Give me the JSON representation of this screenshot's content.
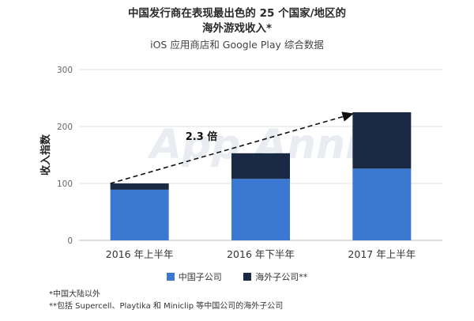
{
  "chart_data": {
    "type": "bar",
    "stacked": true,
    "title": "中国发行商在表现最出色的 25 个国家/地区的海外游戏收入*",
    "subtitle": "iOS 应用商店和 Google Play 综合数据",
    "ylabel": "收入指数",
    "xlabel": "",
    "ylim": [
      0,
      300
    ],
    "yticks": [
      "0",
      "100",
      "200",
      "300"
    ],
    "grid": true,
    "categories": [
      "2016 年上半年",
      "2016 年下半年",
      "2017 年上半年"
    ],
    "series": [
      {
        "name": "中国子公司",
        "values": [
          89,
          108,
          126
        ],
        "color": "#3a78d1"
      },
      {
        "name": "海外子公司**",
        "values": [
          11,
          45,
          99
        ],
        "color": "#1b2a44"
      }
    ],
    "annotations": [
      {
        "text": "2.3 倍",
        "from_category": "2016 年上半年",
        "to_category": "2017 年上半年",
        "from_value": 100,
        "to_value": 225
      }
    ],
    "legend_position": "bottom",
    "watermark": "App Annie"
  },
  "notes": [
    "*中国大陆以外",
    "**包括 Supercell、Playtika 和 Miniclip 等中国公司的海外子公司"
  ]
}
